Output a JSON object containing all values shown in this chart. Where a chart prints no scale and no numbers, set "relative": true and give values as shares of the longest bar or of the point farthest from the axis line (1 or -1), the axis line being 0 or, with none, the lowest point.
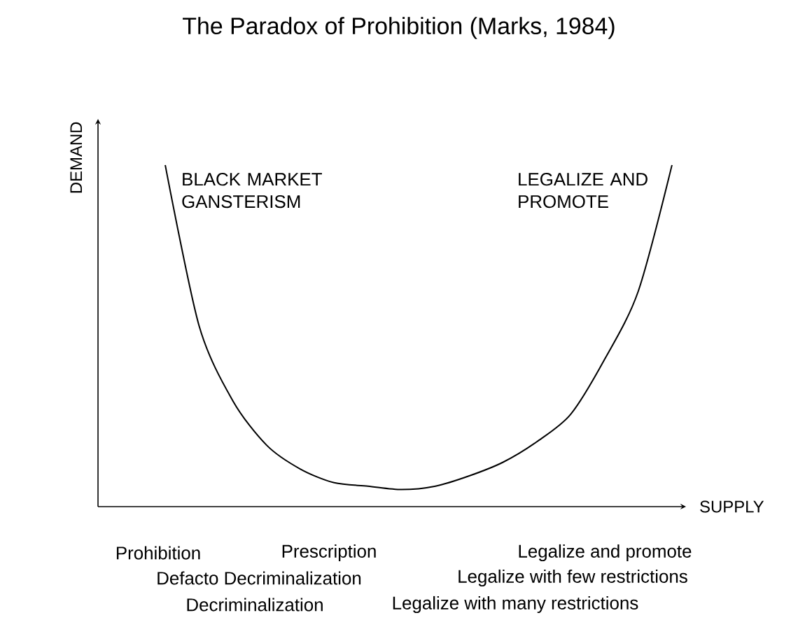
{
  "chart_data": {
    "type": "line",
    "relative": true,
    "title": "The Paradox of Prohibition (Marks, 1984)",
    "xlabel": "SUPPLY",
    "ylabel": "DEMAND",
    "categories": [
      null,
      null,
      null,
      null,
      null,
      null,
      null,
      null,
      null,
      null,
      null,
      null,
      null,
      null,
      null,
      null
    ],
    "values": [
      1.0,
      0.53,
      0.31,
      0.18,
      0.11,
      0.07,
      0.06,
      0.05,
      0.06,
      0.09,
      0.13,
      0.19,
      0.27,
      0.43,
      0.63,
      1.0
    ],
    "color": "#000000",
    "annotations": [
      "BLACK MARKET GANSTERISM",
      "LEGALIZE AND PROMOTE",
      "Prohibition",
      "Prescription",
      "Legalize and promote",
      "Defacto Decriminalization",
      "Legalize with few restrictions",
      "Decriminalization",
      "Legalize with many restrictions"
    ]
  }
}
